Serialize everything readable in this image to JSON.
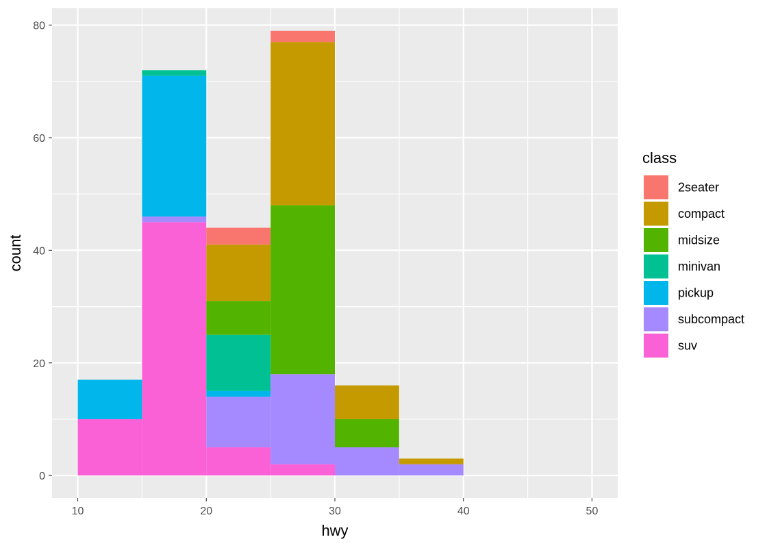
{
  "chart_data": {
    "type": "bar",
    "stacked": true,
    "histogram": true,
    "bin_edges": [
      10,
      15,
      20,
      25,
      30,
      35,
      40,
      45
    ],
    "xlabel": "hwy",
    "ylabel": "count",
    "xlim": [
      8,
      52
    ],
    "ylim": [
      -4,
      83
    ],
    "x_ticks": [
      10,
      20,
      30,
      40,
      50
    ],
    "y_ticks": [
      0,
      20,
      40,
      60,
      80
    ],
    "x_tick_labels": [
      "10",
      "20",
      "30",
      "40",
      "50"
    ],
    "y_tick_labels": [
      "0",
      "20",
      "40",
      "60",
      "80"
    ],
    "grid": true,
    "legend_title": "class",
    "legend_position": "right",
    "stack_order": "first series on top",
    "series": [
      {
        "name": "2seater",
        "color": "#F8766D",
        "values": [
          0,
          0,
          3,
          2,
          0,
          0,
          0
        ]
      },
      {
        "name": "compact",
        "color": "#C49A00",
        "values": [
          0,
          0,
          10,
          29,
          6,
          1,
          0
        ]
      },
      {
        "name": "midsize",
        "color": "#53B400",
        "values": [
          0,
          0,
          6,
          30,
          5,
          0,
          0
        ]
      },
      {
        "name": "minivan",
        "color": "#00C094",
        "values": [
          0,
          1,
          10,
          0,
          0,
          0,
          0
        ]
      },
      {
        "name": "pickup",
        "color": "#00B6EB",
        "values": [
          7,
          25,
          1,
          0,
          0,
          0,
          0
        ]
      },
      {
        "name": "subcompact",
        "color": "#A58AFF",
        "values": [
          0,
          1,
          9,
          16,
          5,
          2,
          0
        ]
      },
      {
        "name": "suv",
        "color": "#FB61D7",
        "values": [
          10,
          45,
          5,
          2,
          0,
          0,
          0
        ]
      }
    ]
  }
}
